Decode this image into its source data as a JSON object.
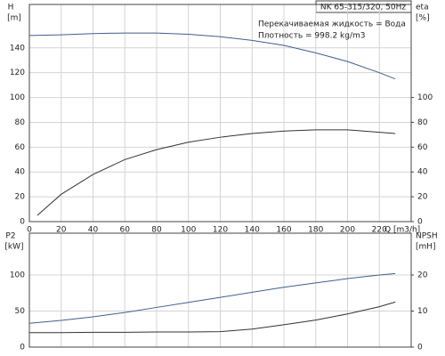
{
  "chart_data": [
    {
      "type": "line",
      "title": "NK 65-315/320, 50Hz",
      "annotations": [
        "Перекачиваемая жидкость = Вода",
        "Плотность = 998.2 kg/m3"
      ],
      "ylabel": "H",
      "yunit": "[m]",
      "y2label": "eta",
      "y2unit": "[%]",
      "xlabel": "Q [m3/h]",
      "xlim": [
        0,
        240
      ],
      "xticks": [
        0,
        20,
        40,
        60,
        80,
        100,
        120,
        140,
        160,
        180,
        200,
        220
      ],
      "ylim": [
        0,
        175
      ],
      "yticks": [
        0,
        20,
        40,
        60,
        80,
        100,
        120,
        140
      ],
      "y2lim": [
        0,
        175
      ],
      "y2ticks": [
        0,
        20,
        40,
        60,
        80,
        100
      ],
      "grid": true,
      "show_xtick_labels": true,
      "series": [
        {
          "color": "#3f5f8f",
          "x": [
            0,
            20,
            40,
            60,
            80,
            100,
            120,
            140,
            160,
            180,
            200,
            220,
            230
          ],
          "values": [
            150,
            150.5,
            151.5,
            152,
            152,
            151,
            149,
            146,
            142,
            136,
            129,
            120,
            115
          ]
        },
        {
          "color": "#333333",
          "axis": "y2",
          "x": [
            5,
            20,
            40,
            60,
            80,
            100,
            120,
            140,
            160,
            180,
            190,
            200,
            220,
            230
          ],
          "values": [
            5,
            22,
            38,
            50,
            58,
            64,
            68,
            71,
            73,
            74,
            74,
            74,
            72,
            71
          ]
        }
      ]
    },
    {
      "type": "line",
      "ylabel": "P2",
      "yunit": "[kW]",
      "y2label": "NPSH",
      "y2unit": "[mH]",
      "xlim": [
        0,
        240
      ],
      "xticks": [
        0,
        20,
        40,
        60,
        80,
        100,
        120,
        140,
        160,
        180,
        200,
        220
      ],
      "ylim": [
        0,
        158
      ],
      "yticks": [
        0,
        50,
        100
      ],
      "y2lim": [
        0,
        31.6
      ],
      "y2ticks": [
        0,
        10,
        20
      ],
      "grid": true,
      "show_xtick_labels": false,
      "series": [
        {
          "color": "#3f5f8f",
          "x": [
            0,
            20,
            40,
            60,
            80,
            100,
            120,
            140,
            160,
            180,
            200,
            220,
            230
          ],
          "values": [
            33,
            37,
            42,
            48,
            55,
            62,
            69,
            76,
            83,
            89,
            95,
            100,
            102
          ]
        },
        {
          "color": "#333333",
          "axis": "y2",
          "x": [
            0,
            20,
            40,
            60,
            80,
            100,
            120,
            140,
            160,
            180,
            200,
            220,
            230
          ],
          "values": [
            4,
            4,
            4.1,
            4.1,
            4.2,
            4.2,
            4.3,
            5,
            6.2,
            7.5,
            9.2,
            11.2,
            12.5
          ]
        }
      ]
    }
  ]
}
